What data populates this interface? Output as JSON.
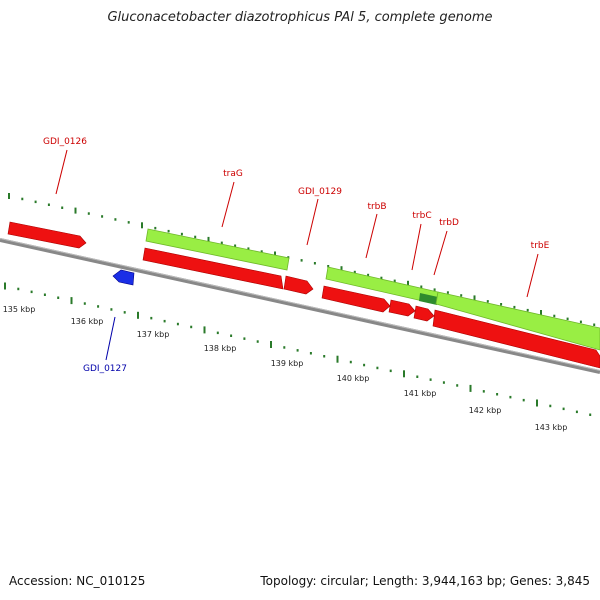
{
  "title": "Gluconacetobacter diazotrophicus PAl 5, complete genome",
  "footer": {
    "accession": "Accession: NC_010125",
    "topology": "Topology: circular; Length: 3,944,163 bp; Genes: 3,845"
  },
  "colors": {
    "forward_gene": "#ff0000",
    "reverse_gene": "#0000ff",
    "cds": "#99ee44",
    "ruler_tick": "#2a7a2a",
    "backbone": "#888888",
    "label_forward": "#cc0000",
    "label_reverse": "#0000aa"
  },
  "scale": {
    "labels": [
      "135 kbp",
      "136 kbp",
      "137 kbp",
      "138 kbp",
      "139 kbp",
      "140 kbp",
      "141 kbp",
      "142 kbp",
      "143 kbp"
    ]
  },
  "genes": [
    {
      "name": "GDI_0126",
      "strand": "forward"
    },
    {
      "name": "GDI_0127",
      "strand": "reverse"
    },
    {
      "name": "traG",
      "strand": "forward"
    },
    {
      "name": "GDI_0129",
      "strand": "forward"
    },
    {
      "name": "trbB",
      "strand": "forward"
    },
    {
      "name": "trbC",
      "strand": "forward"
    },
    {
      "name": "trbD",
      "strand": "forward"
    },
    {
      "name": "trbE",
      "strand": "forward"
    }
  ]
}
